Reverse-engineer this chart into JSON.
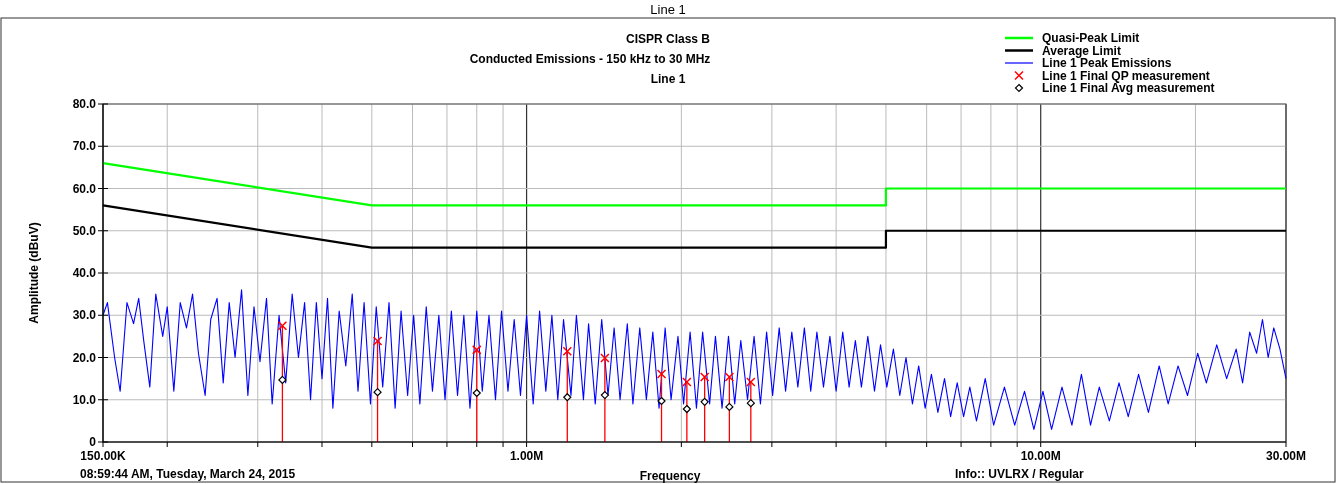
{
  "chart_data": {
    "type": "line",
    "title": "Line 1",
    "subtitle": "CISPR Class B",
    "xlabel": "Frequency",
    "ylabel": "Amplitude (dBuV)",
    "annotations": [
      "Conducted Emissions - 150 kHz to 30 MHz",
      "Line 1",
      "08:59:44 AM, Tuesday, March 24, 2015",
      "Info:: UVLRX / Regular"
    ],
    "log": "x",
    "grid": true,
    "legend": "top right",
    "xlim": [
      150000,
      30000000
    ],
    "xticks": [
      {
        "value": 150000,
        "label": "150.00K"
      },
      {
        "value": 200000,
        "label": null
      },
      {
        "value": 300000,
        "label": null
      },
      {
        "value": 400000,
        "label": null
      },
      {
        "value": 500000,
        "label": null
      },
      {
        "value": 600000,
        "label": null
      },
      {
        "value": 700000,
        "label": null
      },
      {
        "value": 800000,
        "label": null
      },
      {
        "value": 900000,
        "label": null
      },
      {
        "value": 1000000,
        "label": "1.00M"
      },
      {
        "value": 2000000,
        "label": null
      },
      {
        "value": 3000000,
        "label": null
      },
      {
        "value": 4000000,
        "label": null
      },
      {
        "value": 5000000,
        "label": null
      },
      {
        "value": 6000000,
        "label": null
      },
      {
        "value": 7000000,
        "label": null
      },
      {
        "value": 8000000,
        "label": null
      },
      {
        "value": 9000000,
        "label": null
      },
      {
        "value": 10000000,
        "label": "10.00M"
      },
      {
        "value": 20000000,
        "label": null
      },
      {
        "value": 30000000,
        "label": "30.00M"
      }
    ],
    "ylim": [
      0,
      80
    ],
    "yticks": [
      0,
      {
        "value": 10,
        "label": "10.0"
      },
      {
        "value": 20,
        "label": "20.0"
      },
      {
        "value": 30,
        "label": "30.0"
      },
      {
        "value": 40,
        "label": "40.0"
      },
      {
        "value": 50,
        "label": "50.0"
      },
      {
        "value": 60,
        "label": "60.0"
      },
      {
        "value": 70,
        "label": "70.0"
      },
      {
        "value": 80,
        "label": "80.0"
      }
    ],
    "series": [
      {
        "name": "Quasi-Peak Limit",
        "color": "#00ff00",
        "marker": "none",
        "x": [
          150000,
          500000,
          5000000,
          5000000,
          30000000
        ],
        "values": [
          66,
          56,
          56,
          60,
          60
        ]
      },
      {
        "name": "Average Limit",
        "color": "#000000",
        "marker": "none",
        "x": [
          150000,
          500000,
          5000000,
          5000000,
          30000000
        ],
        "values": [
          56,
          46,
          46,
          50,
          50
        ]
      },
      {
        "name": "Line 1 Peak Emissions",
        "color": "#0000ff",
        "marker": "none",
        "x": [
          150000,
          153000,
          158000,
          162000,
          167000,
          172000,
          176000,
          180000,
          185000,
          190000,
          196000,
          200000,
          206000,
          212000,
          218000,
          224000,
          230000,
          237000,
          243000,
          250000,
          257000,
          264000,
          271000,
          279000,
          287000,
          295000,
          303000,
          312000,
          320000,
          330000,
          340000,
          350000,
          360000,
          370000,
          380000,
          390000,
          400000,
          410000,
          420000,
          432000,
          445000,
          458000,
          470000,
          483000,
          497000,
          510000,
          525000,
          540000,
          555000,
          570000,
          587000,
          603000,
          620000,
          638000,
          656000,
          675000,
          694000,
          714000,
          734000,
          755000,
          776000,
          800000,
          820000,
          845000,
          870000,
          894000,
          920000,
          946000,
          973000,
          1000000,
          1030000,
          1060000,
          1090000,
          1120000,
          1150000,
          1180000,
          1220000,
          1250000,
          1290000,
          1320000,
          1360000,
          1400000,
          1440000,
          1480000,
          1520000,
          1570000,
          1610000,
          1660000,
          1710000,
          1760000,
          1810000,
          1860000,
          1910000,
          1970000,
          2020000,
          2080000,
          2140000,
          2200000,
          2270000,
          2330000,
          2400000,
          2470000,
          2540000,
          2610000,
          2690000,
          2770000,
          2850000,
          2930000,
          3010000,
          3100000,
          3190000,
          3280000,
          3370000,
          3470000,
          3570000,
          3670000,
          3780000,
          3890000,
          4000000,
          4120000,
          4240000,
          4360000,
          4480000,
          4610000,
          4750000,
          4880000,
          5020000,
          5170000,
          5320000,
          5470000,
          5630000,
          5790000,
          5960000,
          6130000,
          6310000,
          6500000,
          6680000,
          6880000,
          7080000,
          7280000,
          7500000,
          7800000,
          8100000,
          8500000,
          8900000,
          9300000,
          9700000,
          10100000,
          10500000,
          11000000,
          11500000,
          12000000,
          12500000,
          13000000,
          13600000,
          14200000,
          14800000,
          15500000,
          16200000,
          17000000,
          17700000,
          18500000,
          19300000,
          20200000,
          21000000,
          22000000,
          23000000,
          24000000,
          24700000,
          25500000,
          26300000,
          27000000,
          27700000,
          28400000,
          29200000,
          30000000
        ],
        "values": [
          30,
          33,
          20,
          12,
          33,
          28,
          34,
          24,
          13,
          35,
          25,
          32,
          12,
          33,
          27,
          35,
          21,
          11,
          29,
          34,
          14,
          33,
          20,
          36,
          11,
          32,
          19,
          34,
          9,
          30,
          14,
          35,
          20,
          33,
          10,
          33,
          15,
          34,
          8,
          31,
          18,
          35,
          12,
          33,
          9,
          32,
          13,
          33,
          8,
          31,
          11,
          30,
          9,
          32,
          12,
          30,
          10,
          31,
          11,
          30,
          8,
          31,
          12,
          30,
          10,
          31,
          12,
          29,
          11,
          30,
          9,
          31,
          12,
          30,
          10,
          29,
          11,
          30,
          10,
          28,
          9,
          29,
          11,
          27,
          10,
          28,
          9,
          27,
          10,
          26,
          8,
          27,
          10,
          25,
          9,
          26,
          8,
          26,
          9,
          25,
          8,
          25,
          9,
          24,
          10,
          25,
          9,
          26,
          11,
          27,
          12,
          26,
          13,
          27,
          12,
          26,
          13,
          25,
          12,
          26,
          13,
          24,
          13,
          25,
          12,
          23,
          13,
          22,
          11,
          20,
          9,
          18,
          8,
          16,
          7,
          15,
          6,
          14,
          6,
          13,
          5,
          15,
          4,
          13,
          4,
          12,
          3,
          12,
          3,
          13,
          4,
          16,
          4,
          13,
          5,
          14,
          6,
          16,
          7,
          18,
          9,
          18,
          11,
          21,
          14,
          23,
          15,
          22,
          14,
          26,
          21,
          29,
          20,
          27,
          22,
          15
        ]
      },
      {
        "name": "Line 1 Final QP measurement",
        "type": "lollipop",
        "color": "#ff0000",
        "marker": "cross",
        "x": [
          335000,
          513000,
          800000,
          1200000,
          1420000,
          1830000,
          2050000,
          2220000,
          2480000,
          2730000
        ],
        "values": [
          27.5,
          23.9,
          21.8,
          21.5,
          19.9,
          16.1,
          14.2,
          15.4,
          15.4,
          14.2
        ]
      },
      {
        "name": "Line 1 Final Avg measurement",
        "type": "scatter",
        "color": "#000000",
        "marker": "diamond",
        "x": [
          335000,
          513000,
          800000,
          1200000,
          1420000,
          1830000,
          2050000,
          2220000,
          2480000,
          2730000
        ],
        "values": [
          14.7,
          11.8,
          11.6,
          10.6,
          11.1,
          9.7,
          7.8,
          9.5,
          8.3,
          9.2
        ]
      }
    ]
  }
}
